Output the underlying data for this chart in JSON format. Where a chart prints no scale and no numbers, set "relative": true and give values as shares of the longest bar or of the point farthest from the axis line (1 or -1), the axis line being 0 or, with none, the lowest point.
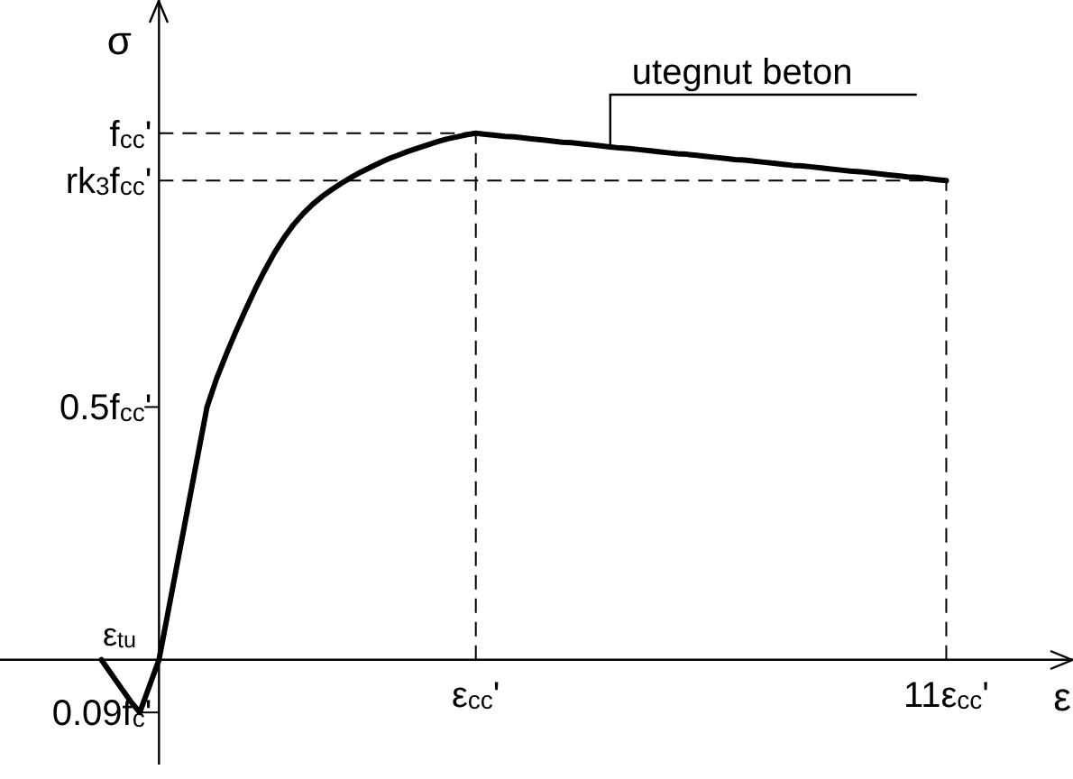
{
  "chart_data": {
    "type": "line",
    "xlabel": "ε",
    "ylabel": "σ",
    "relative": true,
    "categories": [
      null,
      null,
      null,
      null,
      null,
      null,
      null,
      null,
      null,
      null,
      null,
      null,
      null,
      null,
      null,
      null,
      null,
      null,
      null,
      null,
      null,
      null,
      null,
      null,
      null,
      null,
      null,
      null,
      null,
      null,
      null,
      null,
      null,
      null,
      null,
      null,
      null,
      null,
      null,
      "ε$_{cc}$'",
      null,
      null,
      null,
      null,
      null,
      null,
      null,
      null,
      null,
      null,
      null,
      null,
      null,
      null,
      null,
      null,
      null,
      null,
      null,
      null,
      null,
      null,
      null,
      null,
      null,
      null,
      null,
      null,
      null,
      null,
      null,
      null,
      null,
      null,
      null,
      null,
      null,
      null,
      null,
      null,
      null,
      null,
      null,
      null,
      null,
      null,
      null,
      null,
      "11ε$_{cc}$'"
    ],
    "series": [
      {
        "color": "#000000",
        "values": [
          0,
          -0.026,
          -0.052,
          -0.078,
          -0.1,
          -0.05,
          0,
          0.096,
          0.192,
          0.288,
          0.384,
          0.48,
          0.534,
          0.58,
          0.623,
          0.664,
          0.703,
          0.739,
          0.772,
          0.801,
          0.826,
          0.847,
          0.865,
          0.88,
          0.893,
          0.905,
          0.916,
          0.926,
          0.935,
          0.944,
          0.952,
          0.959,
          0.966,
          0.972,
          0.978,
          0.984,
          0.989,
          0.993,
          0.997,
          1,
          0.998,
          0.996,
          0.994,
          0.993,
          0.991,
          0.989,
          0.987,
          0.985,
          0.983,
          0.982,
          0.98,
          0.978,
          0.976,
          0.974,
          0.972,
          0.971,
          0.969,
          0.967,
          0.965,
          0.963,
          0.961,
          0.96,
          0.958,
          0.956,
          0.954,
          0.952,
          0.95,
          0.949,
          0.947,
          0.945,
          0.943,
          0.941,
          0.939,
          0.938,
          0.936,
          0.934,
          0.932,
          0.93,
          0.928,
          0.927,
          0.925,
          0.923,
          0.921,
          0.919,
          0.917,
          0.916,
          0.914,
          0.912,
          0.91
        ]
      }
    ],
    "ref_lines": [
      {
        "axis": "y",
        "value": 1,
        "label": "f$_{cc}$'",
        "line_style": "dashed",
        "color": "#000000"
      },
      {
        "axis": "y",
        "value": 0.91,
        "label": "rk$_{3}$f$_{cc}$'",
        "line_style": "dashed",
        "color": "#000000"
      },
      {
        "axis": "y",
        "value": 0.48,
        "label": "0.5f$_{cc}$'",
        "line_style": "solid",
        "color": "#000000"
      },
      {
        "axis": "y",
        "value": -0.1,
        "label": "0.09f$_{c}$'",
        "line_style": "solid",
        "color": "#000000"
      },
      {
        "axis": "x",
        "value": "ε$_{cc}$'",
        "line_style": "dashed",
        "color": "#000000"
      },
      {
        "axis": "x",
        "value": "11ε$_{cc}$'",
        "line_style": "dashed",
        "color": "#000000"
      }
    ],
    "annotations": [
      "utegnut beton",
      "ε$_{tu}$"
    ],
    "marker": "none",
    "line_style": "solid",
    "legend": false
  }
}
